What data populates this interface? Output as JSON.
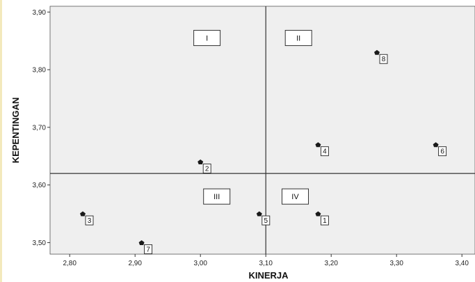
{
  "chart_data": {
    "type": "scatter",
    "xlabel": "KINERJA",
    "ylabel": "KEPENTINGAN",
    "xlim": [
      2.77,
      3.42
    ],
    "ylim": [
      3.48,
      3.91
    ],
    "x_ticks": [
      2.8,
      2.9,
      3.0,
      3.1,
      3.2,
      3.3,
      3.4
    ],
    "x_tick_labels": [
      "2,80",
      "2,90",
      "3,00",
      "3,10",
      "3,20",
      "3,30",
      "3,40"
    ],
    "y_ticks": [
      3.5,
      3.6,
      3.7,
      3.8,
      3.9
    ],
    "y_tick_labels": [
      "3,50",
      "3,60",
      "3,70",
      "3,80",
      "3,90"
    ],
    "reference_lines": {
      "x": 3.1,
      "y": 3.62
    },
    "quadrants": [
      {
        "label": "I",
        "x": 3.01,
        "y": 3.855
      },
      {
        "label": "II",
        "x": 3.15,
        "y": 3.855
      },
      {
        "label": "III",
        "x": 3.025,
        "y": 3.58
      },
      {
        "label": "IV",
        "x": 3.145,
        "y": 3.58
      }
    ],
    "points": [
      {
        "label": "1",
        "x": 3.18,
        "y": 3.55
      },
      {
        "label": "2",
        "x": 3.0,
        "y": 3.64
      },
      {
        "label": "3",
        "x": 2.82,
        "y": 3.55
      },
      {
        "label": "4",
        "x": 3.18,
        "y": 3.67
      },
      {
        "label": "5",
        "x": 3.09,
        "y": 3.55
      },
      {
        "label": "6",
        "x": 3.36,
        "y": 3.67
      },
      {
        "label": "7",
        "x": 2.91,
        "y": 3.5
      },
      {
        "label": "8",
        "x": 3.27,
        "y": 3.83
      }
    ],
    "grid": false,
    "legend": "none",
    "colors": {
      "plot_bg": "#efefef",
      "frame": "#f0e6b8",
      "marker": "#1a1a1a",
      "ref_line": "#333333"
    }
  }
}
